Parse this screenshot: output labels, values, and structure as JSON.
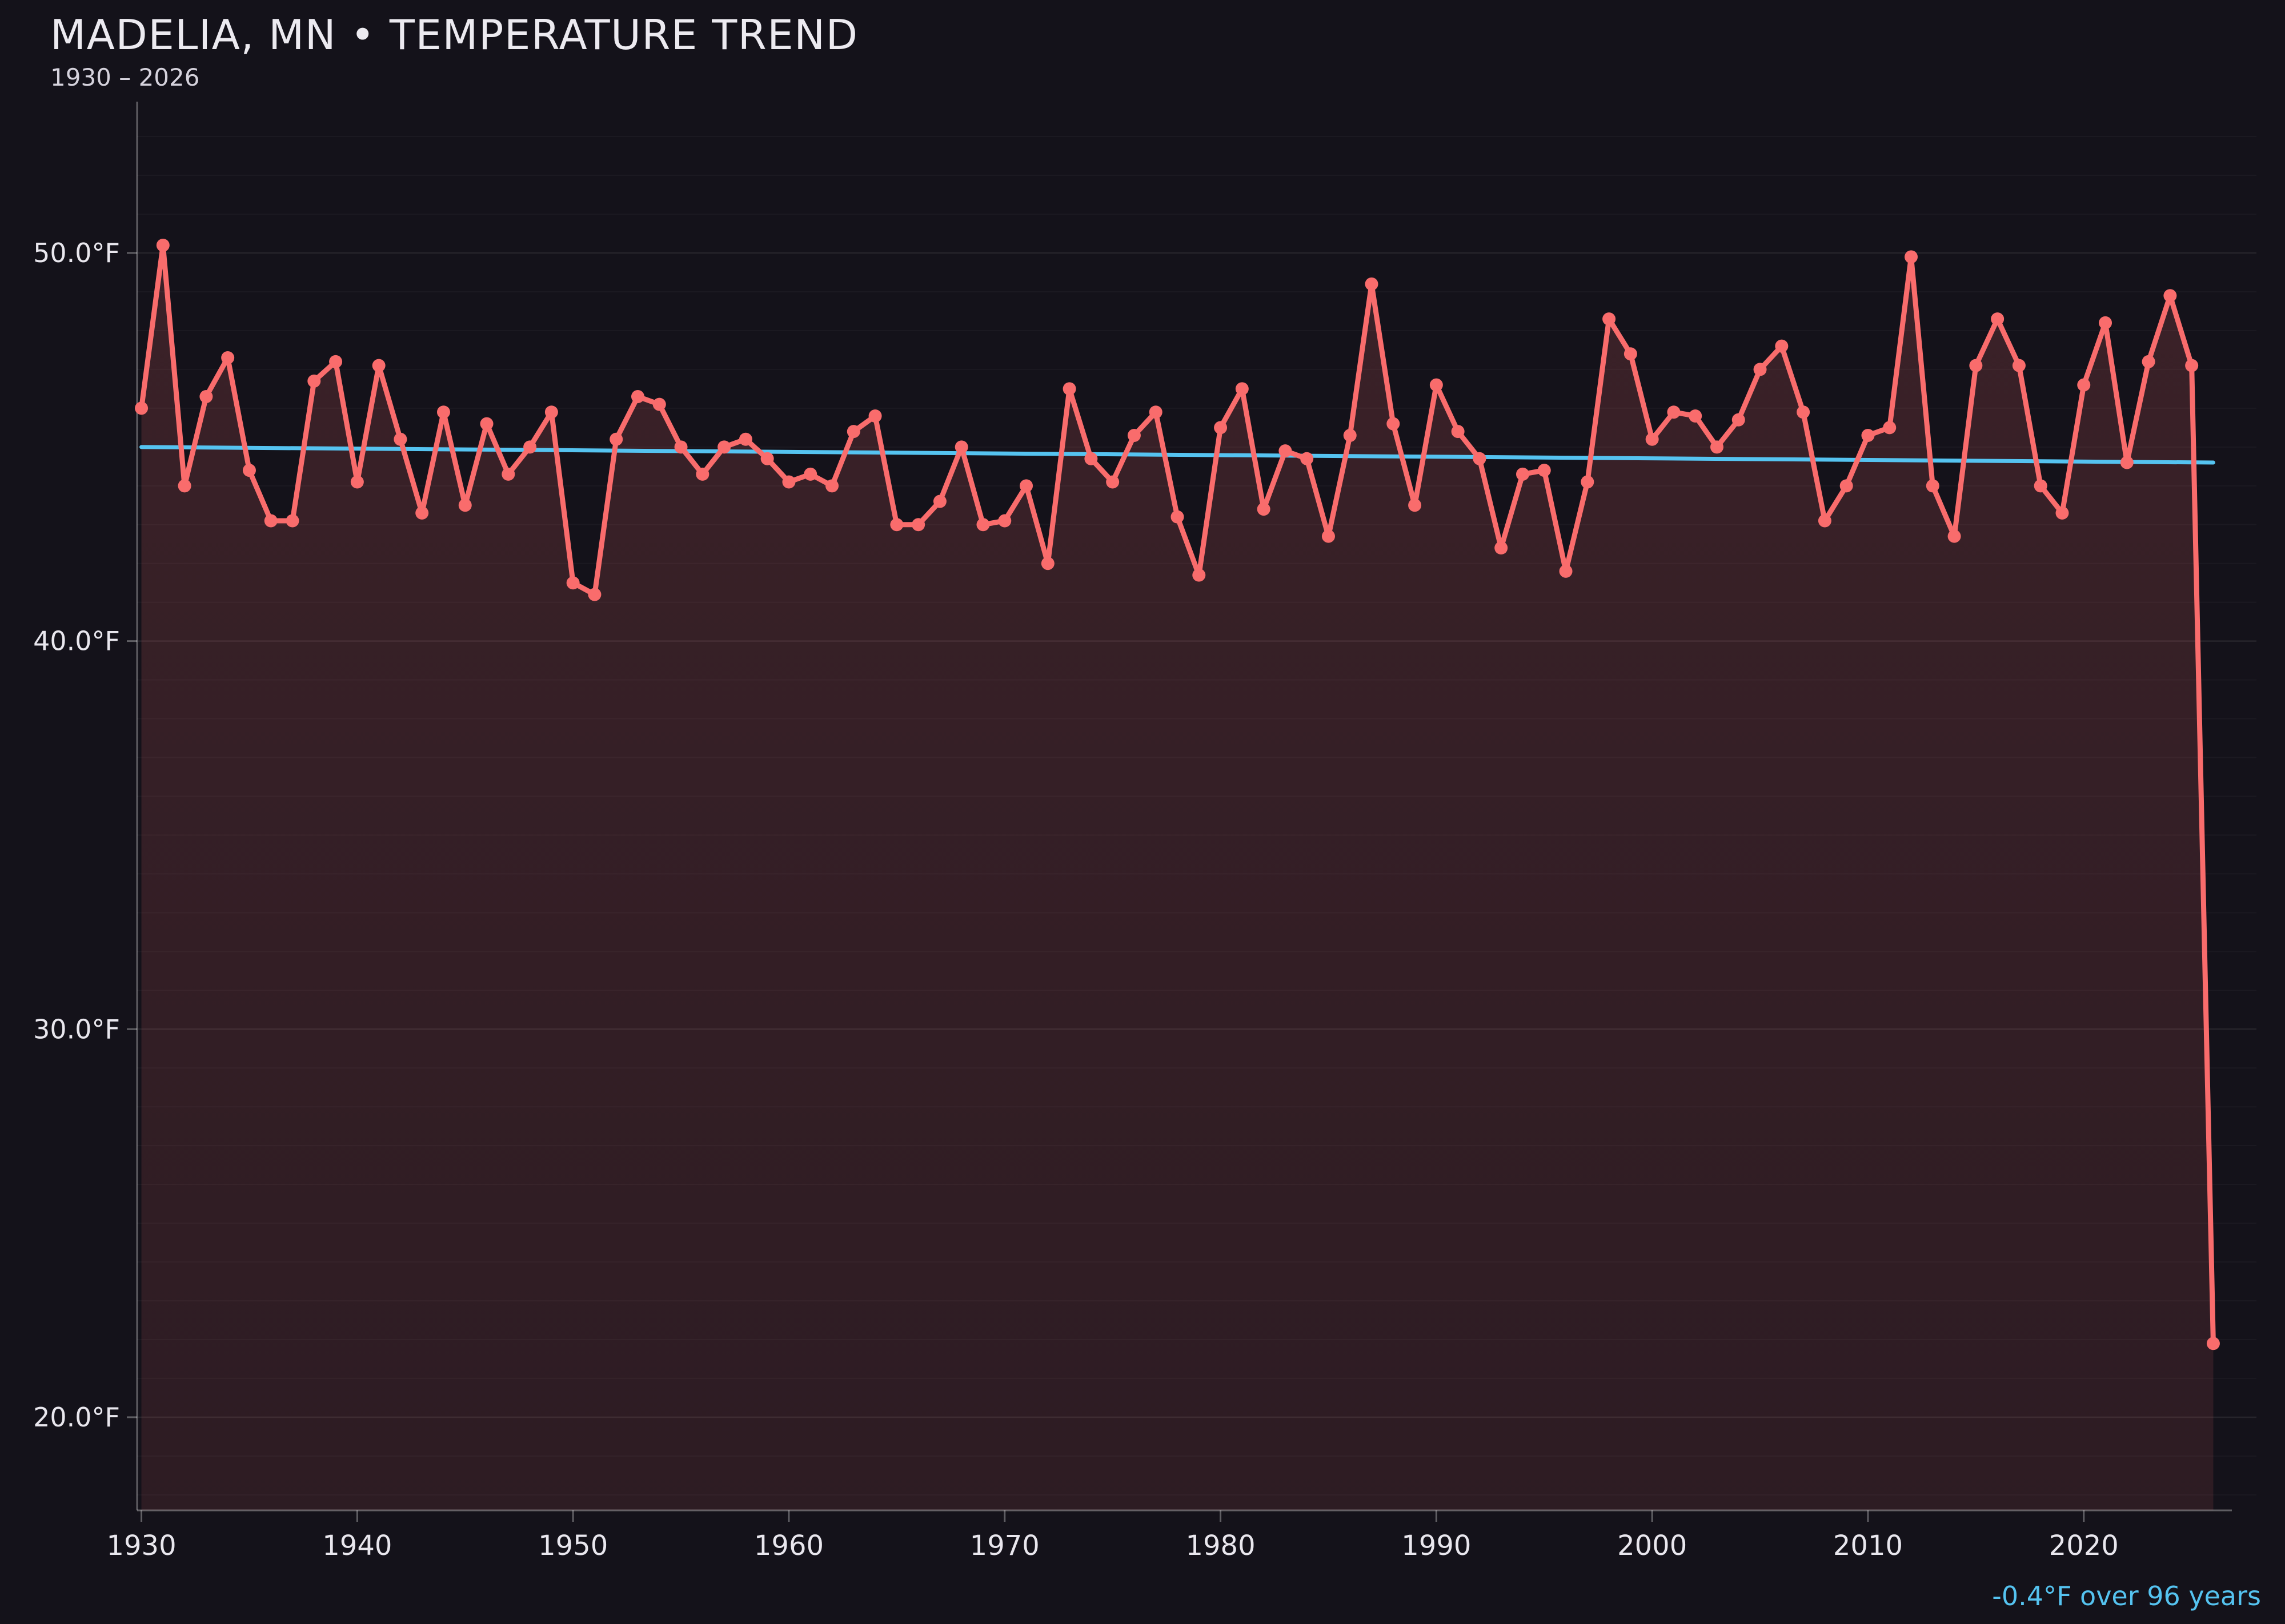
{
  "header": {
    "title": "MADELIA, MN • TEMPERATURE TREND",
    "subtitle": "1930 – 2026"
  },
  "annotation": {
    "text": "-0.4°F over 96 years"
  },
  "colors": {
    "background": "#14121a",
    "series_line": "#f96c6c",
    "series_fill_top": "rgba(249,108,108,0.17)",
    "series_fill_bottom": "rgba(249,108,108,0.11)",
    "trend_line": "#55c3f0",
    "title_text": "#eceaf0",
    "subtitle_text": "#d6d3dd",
    "tick_text": "#e9e7ee",
    "grid_major": "rgba(255,255,255,0.08)",
    "grid_minor": "rgba(255,255,255,0.03)",
    "axis": "rgba(255,255,255,0.32)"
  },
  "chart_data": {
    "type": "line",
    "title": "MADELIA, MN • TEMPERATURE TREND",
    "subtitle": "1930 – 2026",
    "xlabel": "",
    "ylabel": "",
    "unit": "°F",
    "grid": true,
    "legend_position": "none",
    "xlim": [
      1929.8,
      2028.0
    ],
    "ylim": [
      17.6,
      53.9
    ],
    "minor_ytick_step": 1,
    "years": [
      1930,
      1931,
      1932,
      1933,
      1934,
      1935,
      1936,
      1937,
      1938,
      1939,
      1940,
      1941,
      1942,
      1943,
      1944,
      1945,
      1946,
      1947,
      1948,
      1949,
      1950,
      1951,
      1952,
      1953,
      1954,
      1955,
      1956,
      1957,
      1958,
      1959,
      1960,
      1961,
      1962,
      1963,
      1964,
      1965,
      1966,
      1967,
      1968,
      1969,
      1970,
      1971,
      1972,
      1973,
      1974,
      1975,
      1976,
      1977,
      1978,
      1979,
      1980,
      1981,
      1982,
      1983,
      1984,
      1985,
      1986,
      1987,
      1988,
      1989,
      1990,
      1991,
      1992,
      1993,
      1994,
      1995,
      1996,
      1997,
      1998,
      1999,
      2000,
      2001,
      2002,
      2003,
      2004,
      2005,
      2006,
      2007,
      2008,
      2009,
      2010,
      2011,
      2012,
      2013,
      2014,
      2015,
      2016,
      2017,
      2018,
      2019,
      2020,
      2021,
      2022,
      2023,
      2024,
      2025,
      2026
    ],
    "values": [
      46.0,
      50.2,
      44.0,
      46.3,
      47.3,
      44.4,
      43.1,
      43.1,
      46.7,
      47.2,
      44.1,
      47.1,
      45.2,
      43.3,
      45.9,
      43.5,
      45.6,
      44.3,
      45.0,
      45.9,
      41.5,
      41.2,
      45.2,
      46.3,
      46.1,
      45.0,
      44.3,
      45.0,
      45.2,
      44.7,
      44.1,
      44.3,
      44.0,
      45.4,
      45.8,
      43.0,
      43.0,
      43.6,
      45.0,
      43.0,
      43.1,
      44.0,
      42.0,
      46.5,
      44.7,
      44.1,
      45.3,
      45.9,
      43.2,
      41.7,
      45.5,
      46.5,
      43.4,
      44.9,
      44.7,
      42.7,
      45.3,
      49.2,
      45.6,
      43.5,
      46.6,
      45.4,
      44.7,
      42.4,
      44.3,
      44.4,
      41.8,
      44.1,
      48.3,
      47.4,
      45.2,
      45.9,
      45.8,
      45.0,
      45.7,
      47.0,
      47.6,
      45.9,
      43.1,
      44.0,
      45.3,
      45.5,
      49.9,
      44.0,
      42.7,
      47.1,
      48.3,
      47.1,
      44.0,
      43.3,
      46.6,
      48.2,
      44.6,
      47.2,
      48.9,
      47.1,
      21.9
    ],
    "trend": {
      "start_year": 1930,
      "start_value": 45.0,
      "end_year": 2026,
      "end_value": 44.6,
      "label": "-0.4°F over 96 years"
    },
    "yticks": [
      {
        "value": 50,
        "label": "50.0°F"
      },
      {
        "value": 40,
        "label": "40.0°F"
      },
      {
        "value": 30,
        "label": "30.0°F"
      },
      {
        "value": 20,
        "label": "20.0°F"
      }
    ],
    "xticks": [
      {
        "value": 1930,
        "label": "1930"
      },
      {
        "value": 1940,
        "label": "1940"
      },
      {
        "value": 1950,
        "label": "1950"
      },
      {
        "value": 1960,
        "label": "1960"
      },
      {
        "value": 1970,
        "label": "1970"
      },
      {
        "value": 1980,
        "label": "1980"
      },
      {
        "value": 1990,
        "label": "1990"
      },
      {
        "value": 2000,
        "label": "2000"
      },
      {
        "value": 2010,
        "label": "2010"
      },
      {
        "value": 2020,
        "label": "2020"
      }
    ]
  }
}
